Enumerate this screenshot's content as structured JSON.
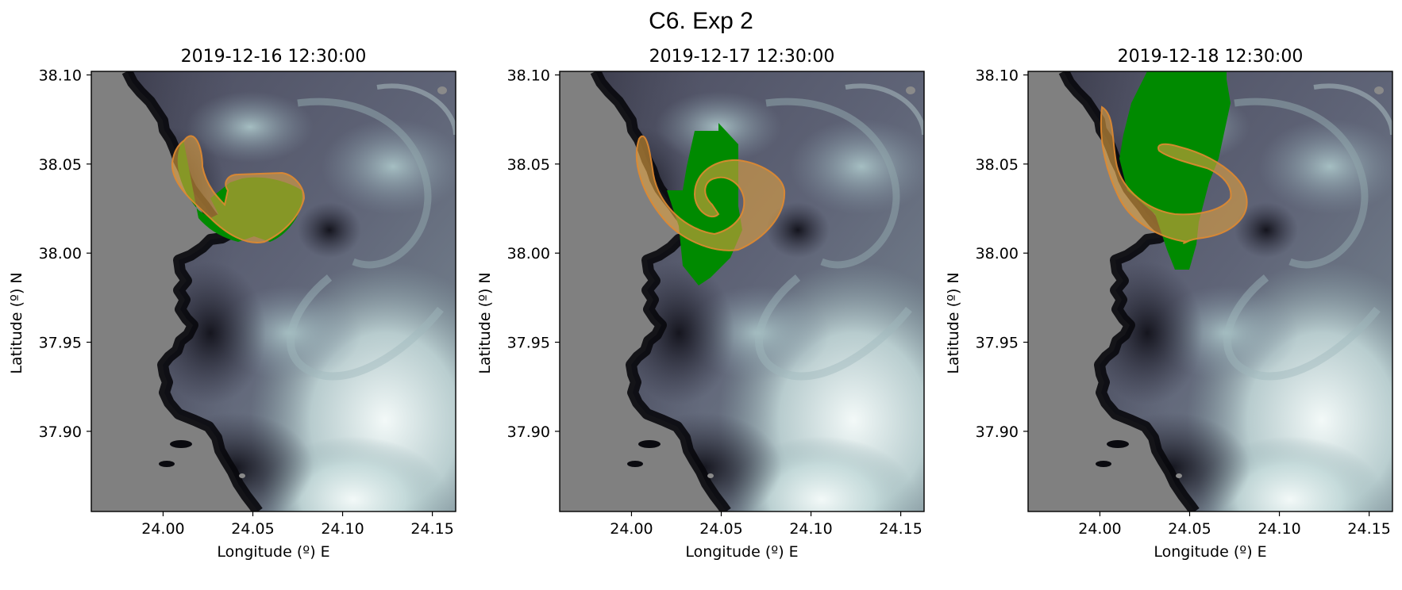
{
  "figure": {
    "title": "C6. Exp 2"
  },
  "panels": [
    {
      "title": "2019-12-16 12:30:00"
    },
    {
      "title": "2019-12-17 12:30:00"
    },
    {
      "title": "2019-12-18 12:30:00"
    }
  ],
  "axes": {
    "xlabel": "Longitude (º) E",
    "ylabel": "Latitude (º) N",
    "xticks": [
      "24.00",
      "24.05",
      "24.10",
      "24.15"
    ],
    "yticks": [
      "38.10",
      "38.05",
      "38.00",
      "37.95",
      "37.90"
    ]
  },
  "colors": {
    "land": "#808080",
    "deep_water": "#15151c",
    "mid_water": "#55566a",
    "light_water": "#a7c3c4",
    "very_light_water": "#eef6f5",
    "green_polygon": "#008a00",
    "orange_patch": "#e0a040"
  },
  "map_extent": {
    "lon": [
      23.96,
      24.163
    ],
    "lat": [
      37.855,
      38.102
    ]
  }
}
